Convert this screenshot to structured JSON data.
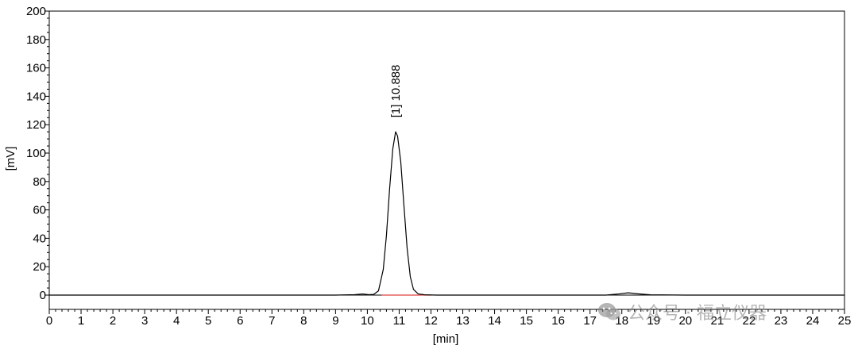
{
  "chart_data": {
    "type": "line",
    "xlabel": "[min]",
    "ylabel": "[mV]",
    "xlim": [
      0,
      25
    ],
    "ylim": [
      0,
      200
    ],
    "x_ticks": [
      0,
      1,
      2,
      3,
      4,
      5,
      6,
      7,
      8,
      9,
      10,
      11,
      12,
      13,
      14,
      15,
      16,
      17,
      18,
      19,
      20,
      21,
      22,
      23,
      24,
      25
    ],
    "y_ticks": [
      0,
      20,
      40,
      60,
      80,
      100,
      120,
      140,
      160,
      180,
      200
    ],
    "grid": false,
    "colors": {
      "signal": "#000000",
      "baseline": "#e04040",
      "axis": "#000000"
    },
    "series": [
      {
        "x": [
          0,
          5,
          9.0,
          9.6,
          9.85,
          10.05,
          10.2,
          10.35,
          10.5,
          10.6,
          10.7,
          10.8,
          10.888,
          10.95,
          11.05,
          11.15,
          11.25,
          11.35,
          11.45,
          11.6,
          11.8,
          12.2,
          14,
          17.5,
          17.9,
          18.2,
          18.5,
          18.9,
          20,
          25
        ],
        "y": [
          0,
          0,
          0,
          0.3,
          0.8,
          0.3,
          0.5,
          3,
          18,
          42,
          75,
          103,
          115,
          112,
          94,
          63,
          33,
          13,
          4,
          0.8,
          0.2,
          0,
          0,
          0,
          0.8,
          1.6,
          0.9,
          0.2,
          0,
          0
        ]
      }
    ],
    "baseline_segment": {
      "x": [
        10.45,
        12.0
      ],
      "y": [
        0,
        0
      ]
    },
    "annotations": [
      {
        "text": "[1]  10.888",
        "x": 10.888,
        "y": 125
      }
    ]
  },
  "watermark": {
    "text": "公众号 · 福立仪器",
    "icon": "wechat-icon"
  }
}
